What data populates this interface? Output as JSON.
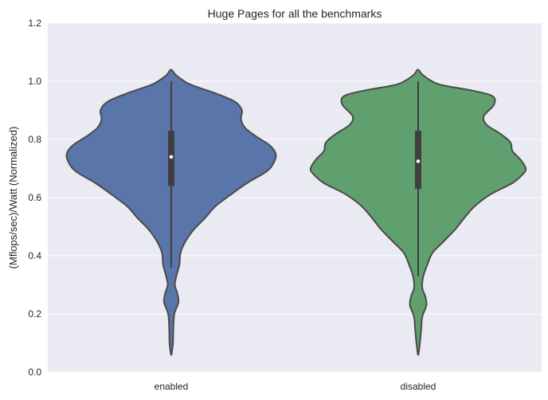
{
  "chart_data": {
    "type": "violin",
    "title": "Huge Pages for all the benchmarks",
    "xlabel": "",
    "ylabel": "(Mflops/sec)/Watt (Normalized)",
    "ylim": [
      0.0,
      1.2
    ],
    "yticks": [
      "0.0",
      "0.2",
      "0.4",
      "0.6",
      "0.8",
      "1.0",
      "1.2"
    ],
    "grid": true,
    "categories": [
      "enabled",
      "disabled"
    ],
    "colors": {
      "background": "#eaeaf2",
      "grid": "#ffffff",
      "outline": "#4a4a4a",
      "box": "#3f3f3f",
      "median": "#ffffff"
    },
    "series": [
      {
        "category": "enabled",
        "color": "#5975aa",
        "min": 0.36,
        "q1": 0.64,
        "median": 0.74,
        "q3": 0.83,
        "max": 1.0,
        "density": [
          [
            0.06,
            0.003
          ],
          [
            0.1,
            0.017
          ],
          [
            0.15,
            0.02
          ],
          [
            0.2,
            0.03
          ],
          [
            0.24,
            0.07
          ],
          [
            0.27,
            0.06
          ],
          [
            0.3,
            0.035
          ],
          [
            0.33,
            0.05
          ],
          [
            0.37,
            0.08
          ],
          [
            0.41,
            0.09
          ],
          [
            0.45,
            0.14
          ],
          [
            0.49,
            0.22
          ],
          [
            0.53,
            0.33
          ],
          [
            0.57,
            0.43
          ],
          [
            0.61,
            0.58
          ],
          [
            0.65,
            0.74
          ],
          [
            0.69,
            0.93
          ],
          [
            0.72,
            1.0
          ],
          [
            0.75,
            1.02
          ],
          [
            0.78,
            0.96
          ],
          [
            0.81,
            0.83
          ],
          [
            0.84,
            0.72
          ],
          [
            0.87,
            0.68
          ],
          [
            0.9,
            0.69
          ],
          [
            0.93,
            0.62
          ],
          [
            0.96,
            0.42
          ],
          [
            0.99,
            0.18
          ],
          [
            1.02,
            0.05
          ],
          [
            1.04,
            0.003
          ]
        ]
      },
      {
        "category": "disabled",
        "color": "#5fa06e",
        "min": 0.33,
        "q1": 0.63,
        "median": 0.725,
        "q3": 0.83,
        "max": 1.0,
        "density": [
          [
            0.06,
            0.003
          ],
          [
            0.1,
            0.017
          ],
          [
            0.15,
            0.03
          ],
          [
            0.19,
            0.04
          ],
          [
            0.23,
            0.08
          ],
          [
            0.26,
            0.07
          ],
          [
            0.29,
            0.04
          ],
          [
            0.33,
            0.05
          ],
          [
            0.37,
            0.09
          ],
          [
            0.41,
            0.14
          ],
          [
            0.45,
            0.25
          ],
          [
            0.49,
            0.36
          ],
          [
            0.53,
            0.45
          ],
          [
            0.57,
            0.55
          ],
          [
            0.61,
            0.7
          ],
          [
            0.65,
            0.92
          ],
          [
            0.68,
            1.02
          ],
          [
            0.7,
            1.05
          ],
          [
            0.73,
            1.0
          ],
          [
            0.76,
            0.92
          ],
          [
            0.79,
            0.9
          ],
          [
            0.82,
            0.8
          ],
          [
            0.85,
            0.67
          ],
          [
            0.88,
            0.64
          ],
          [
            0.92,
            0.74
          ],
          [
            0.95,
            0.72
          ],
          [
            0.97,
            0.5
          ],
          [
            0.99,
            0.2
          ],
          [
            1.02,
            0.05
          ],
          [
            1.04,
            0.003
          ]
        ]
      }
    ]
  }
}
